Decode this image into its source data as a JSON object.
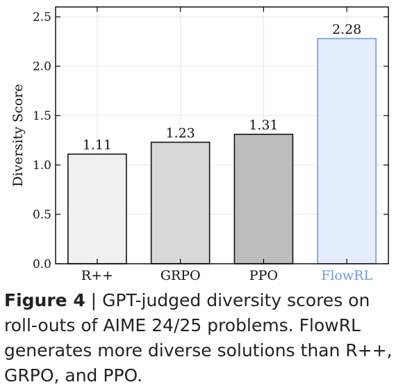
{
  "chart_data": {
    "type": "bar",
    "categories": [
      "R++",
      "GRPO",
      "PPO",
      "FlowRL"
    ],
    "values": [
      1.11,
      1.23,
      1.31,
      2.28
    ],
    "value_labels": [
      "1.11",
      "1.23",
      "1.31",
      "2.28"
    ],
    "bar_fill_colors": [
      "#f0f0f0",
      "#d8d8d8",
      "#bdbdbd",
      "#e3edfb"
    ],
    "bar_stroke_colors": [
      "#111111",
      "#111111",
      "#111111",
      "#6e99dc"
    ],
    "category_label_colors": [
      "#111111",
      "#111111",
      "#111111",
      "#6e99dc"
    ],
    "ylabel": "Diversity Score",
    "ylim": [
      0,
      2.6
    ],
    "yticks": [
      0.0,
      0.5,
      1.0,
      1.5,
      2.0,
      2.5
    ],
    "ytick_labels": [
      "0.0",
      "0.5",
      "1.0",
      "1.5",
      "2.0",
      "2.5"
    ],
    "grid": true
  },
  "caption": {
    "label": "Figure 4",
    "separator": " | ",
    "text": "GPT-judged diversity scores on roll-outs of AIME 24/25 problems. FlowRL generates more diverse solutions than R++, GRPO, and PPO."
  }
}
